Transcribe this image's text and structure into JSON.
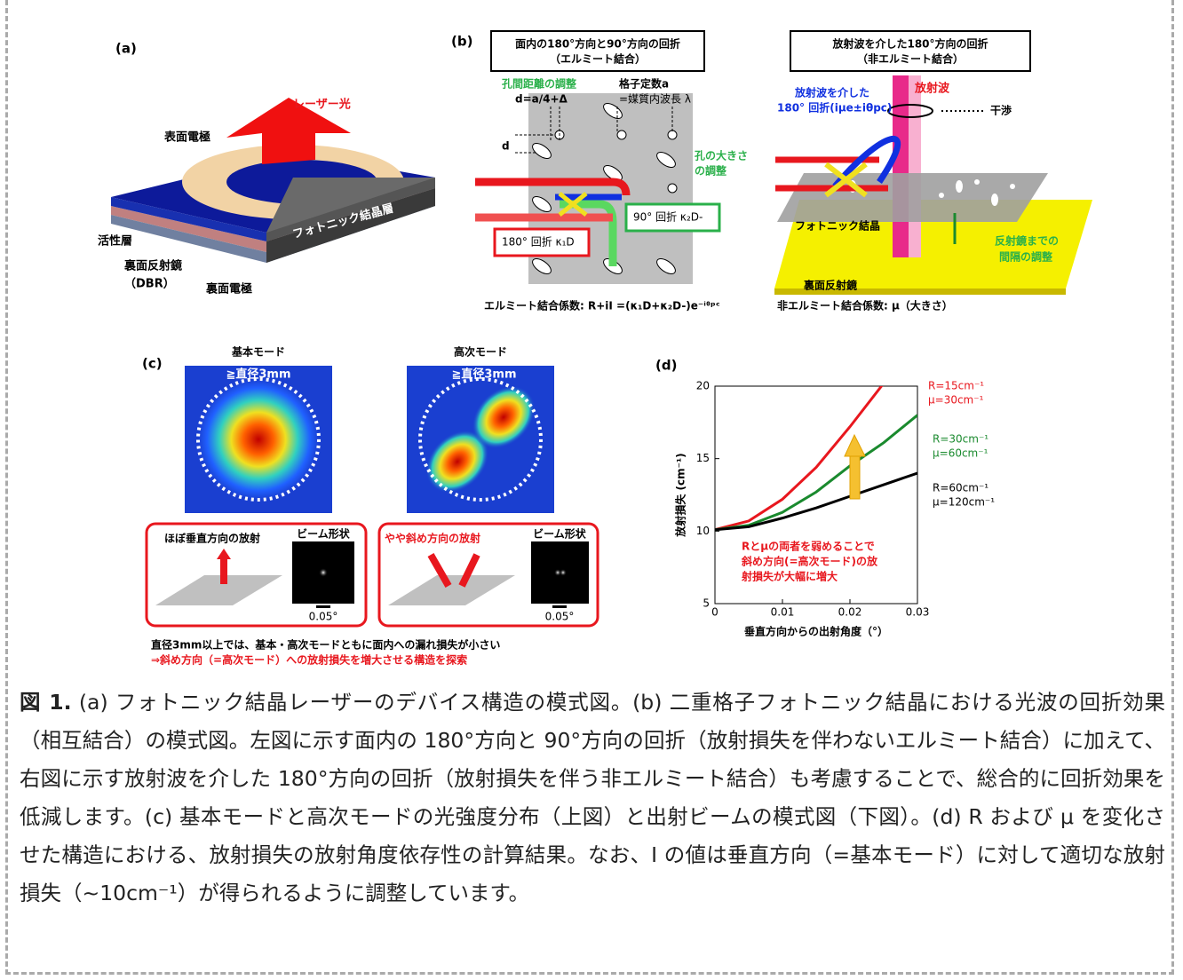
{
  "panel_a": {
    "label": "(a)",
    "laser": "レーザー光",
    "top_electrode": "表面電極",
    "active_layer": "活性層",
    "dbr": "裏面反射鏡",
    "dbr_note": "（DBR）",
    "bottom_electrode": "裏面電極",
    "pc_layer": "フォトニック結晶層"
  },
  "panel_b": {
    "label": "(b)",
    "left_title": "面内の180°方向と90°方向の回折",
    "left_subtitle": "（エルミート結合）",
    "hole_spacing": "孔間距離の調整",
    "d_formula": "d=a/4+Δ",
    "lattice": "格子定数a",
    "lattice2": "=媒質内波長 λ",
    "d": "d",
    "hole_size": "孔の大きさ",
    "hole_size2": "の調整",
    "diff90": "90° 回折 κ₂D-",
    "diff180": "180° 回折 κ₁D",
    "hermitian_coef": "エルミート結合係数: R+iI =(κ₁D+κ₂D-)e⁻ⁱᶿᵖᶜ",
    "right_title": "放射波を介した180°方向の回折",
    "right_subtitle": "（非エルミート結合）",
    "radiation": "放射波",
    "via_rad": "放射波を介した",
    "via_rad2": "180° 回折(iμe±iθpc)",
    "interference": "干渉",
    "pc": "フォトニック結晶",
    "mirror_gap": "反射鏡までの",
    "mirror_gap2": "間隔の調整",
    "back_mirror": "裏面反射鏡",
    "nonherm_coef": "非エルミート結合係数: μ（大きさ）"
  },
  "panel_c": {
    "label": "(c)",
    "fundamental": "基本モード",
    "higher": "高次モード",
    "diameter": [
      "≧直径3mm",
      "≧直径3mm"
    ],
    "vertical": "ほぼ垂直方向の放射",
    "oblique": "やや斜め方向の放射",
    "beam_shape": [
      "ビーム形状",
      "ビーム形状"
    ],
    "scale": [
      "0.05°",
      "0.05°"
    ],
    "note1": "直径3mm以上では、基本・高次モードともに面内への漏れ損失が小さい",
    "note2": "⇒斜め方向（=高次モード）への放射損失を増大させる構造を探索"
  },
  "panel_d": {
    "label": "(d)",
    "type": "line",
    "xlabel": "垂直方向からの出射角度（°）",
    "ylabel": "放射損失 (cm⁻¹)",
    "xlim": [
      0,
      0.03
    ],
    "xticks": [
      0,
      0.01,
      0.02,
      0.03
    ],
    "ylim": [
      5,
      20
    ],
    "yticks": [
      5,
      10,
      15,
      20
    ],
    "x": [
      0,
      0.005,
      0.01,
      0.015,
      0.02,
      0.025,
      0.03
    ],
    "series": [
      {
        "name": "R=15cm⁻¹",
        "name2": "μ=30cm⁻¹",
        "color": "#e8171e",
        "values": [
          10.1,
          10.7,
          12.2,
          14.4,
          17.2,
          20.2,
          null
        ]
      },
      {
        "name": "R=30cm⁻¹",
        "name2": "μ=60cm⁻¹",
        "color": "#1a8a2e",
        "values": [
          10.1,
          10.4,
          11.3,
          12.7,
          14.5,
          16.1,
          18
        ]
      },
      {
        "name": "R=60cm⁻¹",
        "name2": "μ=120cm⁻¹",
        "color": "#000000",
        "values": [
          10.1,
          10.3,
          10.9,
          11.6,
          12.4,
          13.2,
          14
        ]
      }
    ],
    "annotation": [
      "Rとμの両者を弱めることで",
      "斜め方向(=高次モード)の放",
      "射損失が大幅に増大"
    ]
  },
  "caption": {
    "label": "図 1.",
    "text": "(a) フォトニック結晶レーザーのデバイス構造の模式図。(b) 二重格子フォトニック結晶における光波の回折効果（相互結合）の模式図。左図に示す面内の 180°方向と 90°方向の回折（放射損失を伴わないエルミート結合）に加えて、右図に示す放射波を介した 180°方向の回折（放射損失を伴う非エルミート結合）も考慮することで、総合的に回折効果を低減します。(c) 基本モードと高次モードの光強度分布（上図）と出射ビームの模式図（下図）。(d) R および μ を変化させた構造における、放射損失の放射角度依存性の計算結果。なお、I の値は垂直方向（=基本モード）に対して適切な放射損失（~10cm⁻¹）が得られるように調整しています。"
  }
}
